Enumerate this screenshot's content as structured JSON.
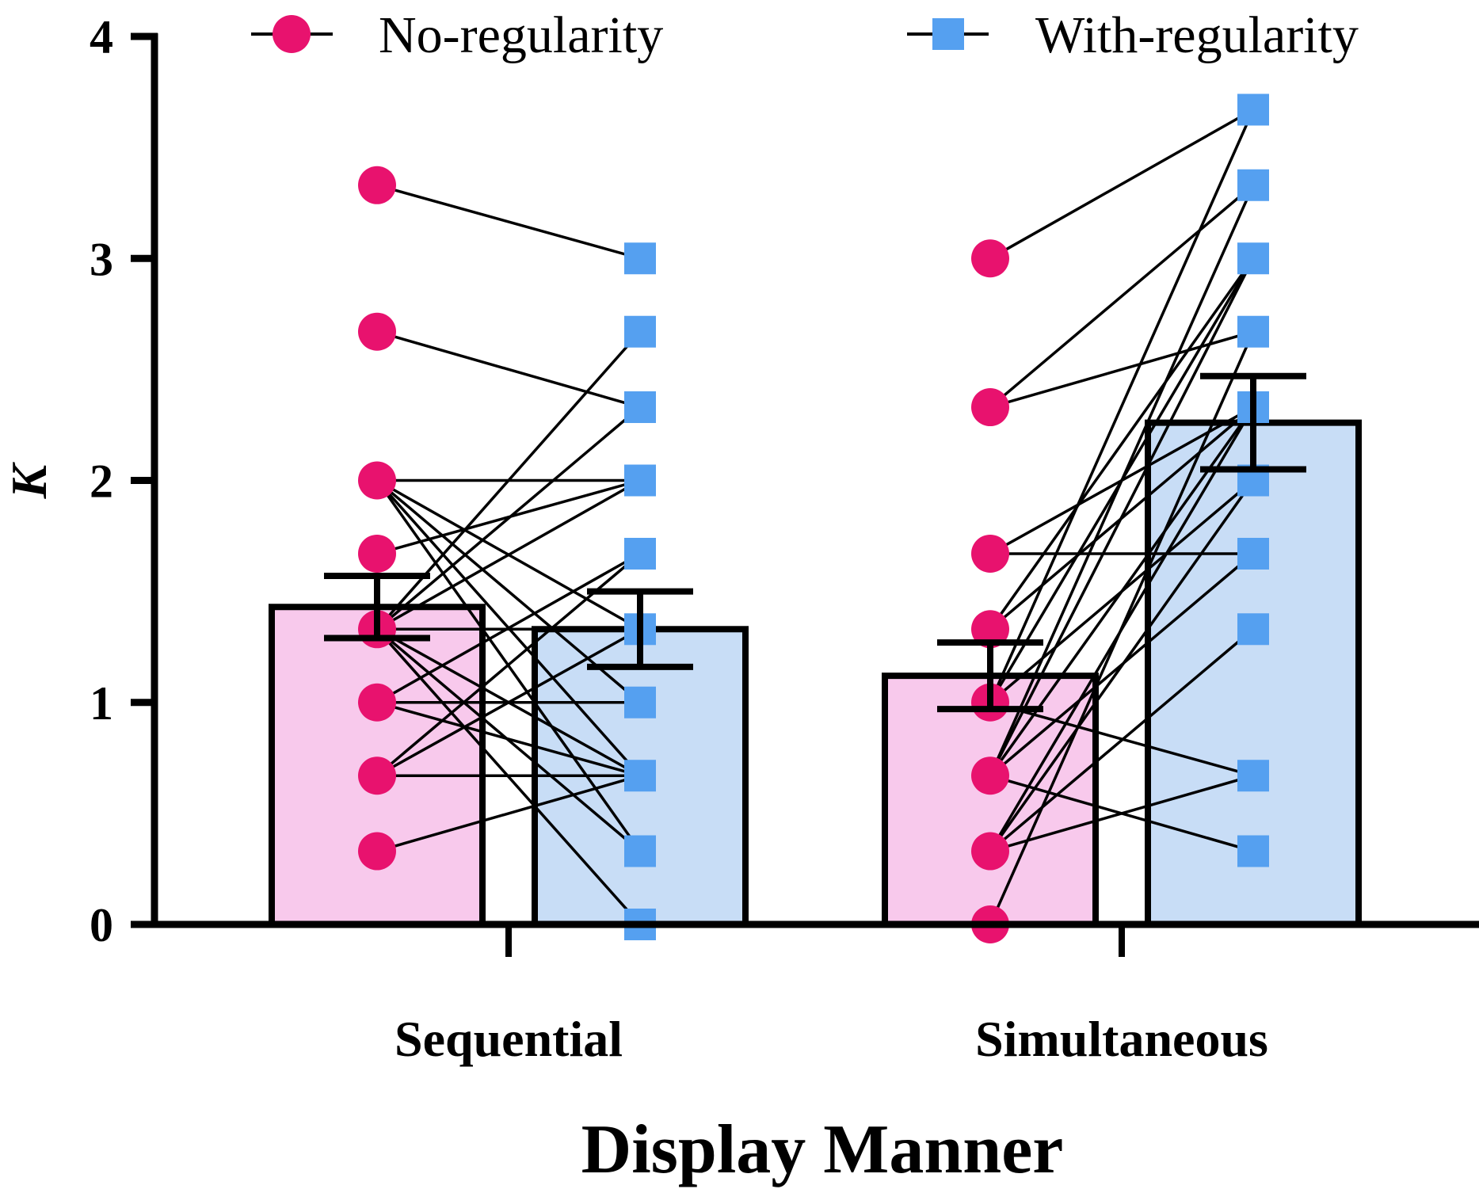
{
  "chart_data": {
    "type": "bar",
    "title": "",
    "xlabel": "Display Manner",
    "ylabel": "K",
    "ylim": [
      0,
      4
    ],
    "yticks": [
      "0",
      "1",
      "2",
      "3",
      "4"
    ],
    "categories": [
      "Sequential",
      "Simultaneous"
    ],
    "legend_position": "top",
    "grid": false,
    "series": [
      {
        "name": "No-regularity",
        "marker": "circle",
        "marker_color": "#E8126E",
        "bar_fill": "#F8C9EC",
        "means": [
          1.43,
          1.12
        ],
        "errors": [
          0.14,
          0.15
        ]
      },
      {
        "name": "With-regularity",
        "marker": "square",
        "marker_color": "#55A0F0",
        "bar_fill": "#C8DDF6",
        "means": [
          1.33,
          2.26
        ],
        "errors": [
          0.17,
          0.21
        ]
      }
    ],
    "paired_lines": [
      {
        "category": "Sequential",
        "pairs": [
          [
            3.33,
            3.0
          ],
          [
            2.67,
            2.33
          ],
          [
            2.0,
            2.0
          ],
          [
            2.0,
            1.33
          ],
          [
            2.0,
            1.0
          ],
          [
            2.0,
            0.67
          ],
          [
            2.0,
            0.33
          ],
          [
            1.67,
            2.0
          ],
          [
            1.33,
            2.67
          ],
          [
            1.33,
            2.33
          ],
          [
            1.33,
            2.0
          ],
          [
            1.33,
            1.33
          ],
          [
            1.33,
            0.67
          ],
          [
            1.33,
            0.33
          ],
          [
            1.33,
            0.0
          ],
          [
            1.0,
            1.67
          ],
          [
            1.0,
            1.0
          ],
          [
            1.0,
            0.67
          ],
          [
            0.67,
            1.67
          ],
          [
            0.67,
            1.33
          ],
          [
            0.67,
            0.67
          ],
          [
            0.33,
            0.67
          ]
        ]
      },
      {
        "category": "Simultaneous",
        "pairs": [
          [
            3.0,
            3.67
          ],
          [
            2.33,
            3.33
          ],
          [
            2.33,
            2.67
          ],
          [
            1.67,
            2.33
          ],
          [
            1.67,
            1.67
          ],
          [
            1.33,
            3.0
          ],
          [
            1.33,
            2.33
          ],
          [
            1.0,
            3.67
          ],
          [
            1.0,
            3.0
          ],
          [
            1.0,
            2.0
          ],
          [
            1.0,
            0.67
          ],
          [
            0.67,
            3.33
          ],
          [
            0.67,
            3.0
          ],
          [
            0.67,
            2.33
          ],
          [
            0.67,
            1.67
          ],
          [
            0.67,
            0.33
          ],
          [
            0.33,
            2.33
          ],
          [
            0.33,
            2.0
          ],
          [
            0.33,
            1.33
          ],
          [
            0.33,
            0.67
          ],
          [
            0.0,
            2.67
          ]
        ]
      }
    ]
  }
}
